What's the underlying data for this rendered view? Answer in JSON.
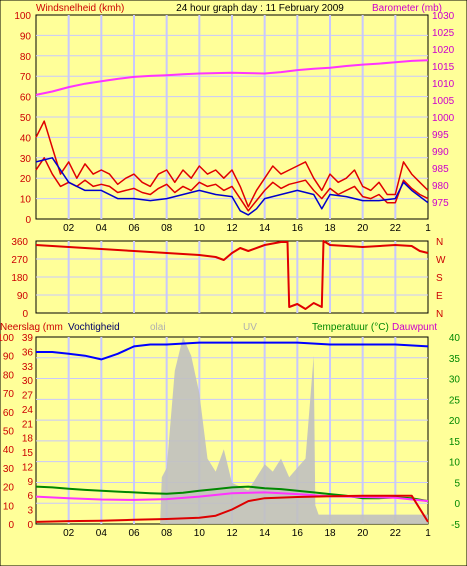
{
  "colors": {
    "background": "#ffff99",
    "plot": "#ffff99",
    "grid": "#c8c8ff",
    "wind": "#e00000",
    "gust": "#e00000",
    "avg": "#0000cc",
    "baro": "#ff33ff",
    "dir": "#e00000",
    "hum": "#0000ff",
    "temp": "#008800",
    "dew": "#ff33ff",
    "rain": "#dd0000",
    "solar": "#c0c0c0",
    "labelRed": "#cc0000",
    "labelMagenta": "#cc00cc",
    "labelGreen": "#008800",
    "labelGray": "#b0b0b0"
  },
  "chart_data": [
    {
      "type": "line",
      "title": "24 hour graph day : 11 February 2009",
      "ylabel": "Windsnelheid (kmh)",
      "y2label": "Barometer (mb)",
      "ylim": [
        0,
        100
      ],
      "y2lim": [
        970,
        1030
      ],
      "yticks": [
        "0",
        "10",
        "20",
        "30",
        "40",
        "50",
        "60",
        "70",
        "80",
        "90",
        "100"
      ],
      "y2ticks": [
        "975",
        "980",
        "985",
        "990",
        "995",
        "1000",
        "1005",
        "1010",
        "1015",
        "1020",
        "1025",
        "1030"
      ],
      "xticks": [
        "02",
        "04",
        "06",
        "08",
        "10",
        "12",
        "14",
        "16",
        "18",
        "20",
        "22",
        "1"
      ],
      "grid": true,
      "series": [
        {
          "name": "gust",
          "axis": "y",
          "x": [
            0,
            0.5,
            1,
            1.5,
            2,
            2.5,
            3,
            3.5,
            4,
            4.5,
            5,
            5.5,
            6,
            6.5,
            7,
            7.5,
            8,
            8.5,
            9,
            9.5,
            10,
            10.5,
            11,
            11.5,
            12,
            12.5,
            13,
            13.5,
            14,
            14.5,
            15,
            15.5,
            16,
            16.5,
            17,
            17.5,
            18,
            18.5,
            19,
            19.5,
            20,
            20.5,
            21,
            21.5,
            22,
            22.5,
            23,
            23.5,
            24
          ],
          "values": [
            40,
            48,
            35,
            22,
            28,
            20,
            27,
            22,
            24,
            22,
            17,
            20,
            22,
            18,
            16,
            22,
            24,
            18,
            24,
            20,
            26,
            22,
            24,
            20,
            24,
            16,
            6,
            14,
            20,
            26,
            22,
            24,
            26,
            28,
            20,
            14,
            22,
            18,
            20,
            24,
            16,
            14,
            18,
            12,
            12,
            28,
            22,
            18,
            14
          ]
        },
        {
          "name": "wind",
          "axis": "y",
          "x": [
            0,
            0.5,
            1,
            1.5,
            2,
            2.5,
            3,
            3.5,
            4,
            4.5,
            5,
            5.5,
            6,
            6.5,
            7,
            7.5,
            8,
            8.5,
            9,
            9.5,
            10,
            10.5,
            11,
            11.5,
            12,
            12.5,
            13,
            13.5,
            14,
            14.5,
            15,
            15.5,
            16,
            16.5,
            17,
            17.5,
            18,
            18.5,
            19,
            19.5,
            20,
            20.5,
            21,
            21.5,
            22,
            22.5,
            23,
            23.5,
            24
          ],
          "values": [
            24,
            30,
            22,
            16,
            18,
            16,
            19,
            16,
            17,
            16,
            13,
            14,
            15,
            13,
            12,
            15,
            17,
            13,
            16,
            14,
            18,
            16,
            17,
            14,
            16,
            10,
            4,
            9,
            14,
            18,
            15,
            17,
            18,
            19,
            14,
            10,
            15,
            12,
            14,
            16,
            11,
            10,
            12,
            8,
            8,
            19,
            15,
            12,
            10
          ]
        },
        {
          "name": "avg",
          "axis": "y",
          "x": [
            0,
            1,
            2,
            3,
            4,
            5,
            6,
            7,
            8,
            9,
            10,
            11,
            12,
            12.5,
            13,
            13.5,
            14,
            15,
            16,
            17,
            17.5,
            18,
            19,
            20,
            21,
            22,
            22.5,
            23,
            24
          ],
          "values": [
            28,
            30,
            18,
            14,
            14,
            10,
            10,
            9,
            10,
            12,
            14,
            12,
            11,
            4,
            2,
            5,
            10,
            12,
            14,
            12,
            5,
            12,
            11,
            9,
            9,
            10,
            18,
            14,
            8
          ]
        },
        {
          "name": "barometer",
          "axis": "y2",
          "x": [
            0,
            1,
            2,
            3,
            4,
            5,
            6,
            7,
            8,
            9,
            10,
            11,
            12,
            13,
            14,
            15,
            16,
            17,
            18,
            19,
            20,
            21,
            22,
            23,
            24
          ],
          "values": [
            1006.5,
            1007.5,
            1008.8,
            1009.8,
            1010.5,
            1011.2,
            1011.8,
            1012.1,
            1012.3,
            1012.6,
            1012.8,
            1012.9,
            1013,
            1012.9,
            1012.8,
            1013.2,
            1013.8,
            1014.2,
            1014.5,
            1015,
            1015.4,
            1015.7,
            1016.1,
            1016.5,
            1016.7
          ]
        }
      ]
    },
    {
      "type": "line",
      "yticks": [
        "0",
        "90",
        "180",
        "270",
        "360"
      ],
      "y2ticks": [
        "N",
        "E",
        "S",
        "W",
        "N"
      ],
      "ylim": [
        0,
        360
      ],
      "grid": true,
      "series": [
        {
          "name": "direction",
          "x": [
            0,
            2,
            4,
            6,
            8,
            10,
            11,
            11.5,
            12,
            12.5,
            13,
            14,
            15,
            15.4,
            15.5,
            16,
            16.5,
            17,
            17.5,
            17.6,
            18,
            20,
            22,
            23,
            23.5,
            24
          ],
          "values": [
            340,
            330,
            320,
            310,
            300,
            290,
            280,
            265,
            300,
            325,
            310,
            340,
            355,
            355,
            30,
            45,
            20,
            50,
            30,
            360,
            340,
            330,
            340,
            335,
            310,
            300
          ]
        }
      ]
    },
    {
      "type": "line",
      "ylabel": "Neerslag (mm",
      "y2label": "Dauwpunt",
      "extra_labels": [
        "Vochtigheid",
        "olai",
        "UV",
        "Temperatuur (°C)"
      ],
      "ylim": [
        0,
        100
      ],
      "y2lim": [
        -5,
        40
      ],
      "yticks": [
        "0",
        "10",
        "20",
        "30",
        "40",
        "50",
        "60",
        "70",
        "80",
        "90",
        "100"
      ],
      "yticks_mid": [
        "0",
        "3",
        "6",
        "9",
        "12",
        "15",
        "18",
        "21",
        "24",
        "27",
        "30",
        "33",
        "36",
        "39"
      ],
      "y2ticks": [
        "-5",
        "0",
        "5",
        "10",
        "15",
        "20",
        "25",
        "30",
        "35",
        "40"
      ],
      "xticks": [
        "02",
        "04",
        "06",
        "08",
        "10",
        "12",
        "14",
        "16",
        "18",
        "20",
        "22",
        "1"
      ],
      "grid": true,
      "series": [
        {
          "name": "solar",
          "axis": "y",
          "x": [
            7.6,
            7.7,
            8,
            8.5,
            9,
            9.5,
            10,
            10.5,
            11,
            11.5,
            12,
            12.5,
            13,
            13.5,
            14,
            14.5,
            15,
            15.5,
            16,
            16.5,
            17,
            17.1,
            17.3,
            24
          ],
          "values": [
            0,
            25,
            30,
            82,
            100,
            90,
            70,
            35,
            28,
            40,
            22,
            20,
            18,
            25,
            32,
            28,
            35,
            25,
            30,
            35,
            90,
            10,
            5,
            5
          ]
        },
        {
          "name": "humidity",
          "axis": "y",
          "x": [
            0,
            1,
            2,
            3,
            4,
            5,
            6,
            7,
            8,
            10,
            12,
            14,
            16,
            18,
            20,
            22,
            24
          ],
          "values": [
            92,
            92,
            91,
            90,
            88,
            91,
            95,
            96,
            96,
            97,
            97,
            97,
            97,
            96,
            96,
            96,
            95
          ]
        },
        {
          "name": "temperature",
          "axis": "y2",
          "x": [
            0,
            1,
            2,
            3,
            4,
            5,
            6,
            7,
            8,
            9,
            10,
            11,
            12,
            13,
            14,
            15,
            16,
            17,
            18,
            19,
            20,
            21,
            22,
            23,
            24
          ],
          "values": [
            4,
            3.8,
            3.5,
            3.2,
            3,
            2.8,
            2.6,
            2.4,
            2.3,
            2.5,
            3,
            3.4,
            3.8,
            4,
            3.6,
            3.4,
            3,
            2.6,
            2.2,
            1.8,
            1.2,
            1.2,
            1.4,
            1.2,
            0.5
          ]
        },
        {
          "name": "dewpoint",
          "axis": "y2",
          "x": [
            0,
            2,
            4,
            6,
            8,
            10,
            12,
            14,
            16,
            18,
            20,
            22,
            24
          ],
          "values": [
            1.6,
            1.2,
            0.9,
            0.8,
            1,
            1.6,
            2.4,
            2.6,
            2.2,
            1.7,
            1.5,
            1.3,
            0.5
          ]
        },
        {
          "name": "rain",
          "axis": "y2",
          "x": [
            0,
            2,
            4,
            6,
            8,
            10,
            11,
            12,
            13,
            14,
            16,
            18,
            20,
            22,
            23,
            24
          ],
          "values": [
            -4.5,
            -4.3,
            -4.2,
            -4,
            -3.8,
            -3.5,
            -3,
            -1.5,
            0.5,
            1.2,
            1.5,
            1.7,
            1.8,
            1.8,
            1.8,
            -4.5
          ]
        }
      ]
    }
  ]
}
